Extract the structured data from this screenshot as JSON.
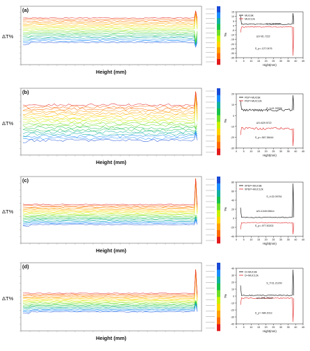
{
  "chart_data": [
    {
      "panel_label": "(a)",
      "type": "line",
      "chart_role": "main-transmission-profile",
      "xlabel": "Height (mm)",
      "ylabel": "ΔT%",
      "series_summary": "many time-step traces, red(early)->green->blue(late), flat band from ~-2 to +3 %, sharp spike at ~43 mm",
      "inset": {
        "type": "line",
        "xlabel": "Hight(mm)",
        "ylabel": "T%",
        "xticks": [
          "0",
          "5",
          "10",
          "15",
          "20",
          "25",
          "30",
          "35",
          "40",
          "45"
        ],
        "yticks": [
          "15",
          "10",
          "5",
          "0",
          "-5",
          "-10",
          "-15",
          "-20",
          "-25",
          "-30",
          "-35"
        ],
        "series": [
          {
            "name": "MUC8k",
            "color": "#000000",
            "level": 1.5
          },
          {
            "name": "MUC12k",
            "color": "#e02020",
            "level": -1.5
          }
        ],
        "annotations": [
          "S_f=18.0034",
          "ΔS=81.7222",
          "S_p=-127.0476"
        ]
      }
    },
    {
      "panel_label": "(b)",
      "type": "line",
      "chart_role": "main-transmission-profile",
      "xlabel": "Height (mm)",
      "ylabel": "ΔT%",
      "inset": {
        "type": "line",
        "xlabel": "Hight(mm)",
        "ylabel": "T%",
        "xticks": [
          "0",
          "5",
          "10",
          "15",
          "20",
          "25",
          "30",
          "35",
          "40",
          "45"
        ],
        "yticks": [
          "20",
          "10",
          "0",
          "-10",
          "-20",
          "-30"
        ],
        "series": [
          {
            "name": "PEP+MUC8k",
            "color": "#000000",
            "level": 5
          },
          {
            "name": "PEP+MUC12k",
            "color": "#e02020",
            "level": -12
          }
        ],
        "annotations": [
          "S_f=41.33976",
          "ΔS=629.9722",
          "S_p=-567.38444"
        ]
      }
    },
    {
      "panel_label": "(c)",
      "type": "line",
      "chart_role": "main-transmission-profile",
      "xlabel": "Height (mm)",
      "ylabel": "ΔT%",
      "inset": {
        "type": "line",
        "xlabel": "Hight(mm)",
        "ylabel": "T%",
        "xticks": [
          "0",
          "5",
          "10",
          "15",
          "20",
          "25",
          "30",
          "35",
          "40",
          "45"
        ],
        "yticks": [
          "80",
          "60",
          "40",
          "20",
          "0",
          "-20",
          "-40"
        ],
        "series": [
          {
            "name": "0PEP+MUC8k",
            "color": "#000000",
            "level": 2
          },
          {
            "name": "0PEP+MUC12k",
            "color": "#e02020",
            "level": -10
          }
        ],
        "annotations": [
          "S_f=32.09761",
          "ΔS=1049.05614",
          "S_p=-977.50202"
        ]
      }
    },
    {
      "panel_label": "(d)",
      "type": "line",
      "chart_role": "main-transmission-profile",
      "xlabel": "Height (mm)",
      "ylabel": "ΔT%",
      "inset": {
        "type": "line",
        "xlabel": "Hight(mm)",
        "ylabel": "T%",
        "xticks": [
          "0",
          "5",
          "10",
          "15",
          "20",
          "25",
          "30",
          "35",
          "40",
          "45"
        ],
        "yticks": [
          "40",
          "30",
          "20",
          "10",
          "0",
          "-10",
          "-20",
          "-30",
          "-40"
        ],
        "series": [
          {
            "name": "D+MUC8k",
            "color": "#000000",
            "level": 1
          },
          {
            "name": "D+MUC12k",
            "color": "#e02020",
            "level": -3
          }
        ],
        "annotations": [
          "S_f=31.21200",
          "ΔS=856.75200",
          "S_p=-484.2013"
        ]
      }
    }
  ],
  "colors": {
    "ramp": [
      "#e31a1c",
      "#ff6a00",
      "#ff9f00",
      "#ffd400",
      "#c8f000",
      "#6ede2a",
      "#18c24c",
      "#12b0a0",
      "#1a8cff",
      "#1a4bd6"
    ],
    "inset_black": "#000000",
    "inset_red": "#e02020"
  }
}
